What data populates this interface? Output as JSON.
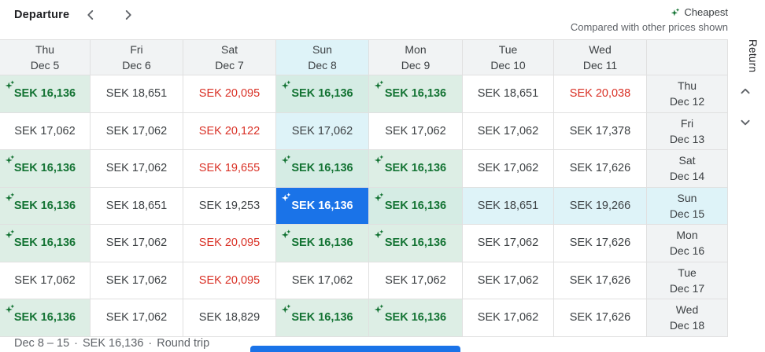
{
  "header": {
    "departure_label": "Departure",
    "legend": {
      "cheapest_label": "Cheapest",
      "note": "Compared with other prices shown"
    }
  },
  "return_axis_label": "Return",
  "icons": {
    "cheapest": "sparkle-icon",
    "prev": "chevron-left-icon",
    "next": "chevron-right-icon",
    "return_up": "chevron-up-icon",
    "return_down": "chevron-down-icon"
  },
  "columns": [
    {
      "day": "Thu",
      "date": "Dec 5",
      "highlighted": false
    },
    {
      "day": "Fri",
      "date": "Dec 6",
      "highlighted": false
    },
    {
      "day": "Sat",
      "date": "Dec 7",
      "highlighted": false
    },
    {
      "day": "Sun",
      "date": "Dec 8",
      "highlighted": true
    },
    {
      "day": "Mon",
      "date": "Dec 9",
      "highlighted": false
    },
    {
      "day": "Tue",
      "date": "Dec 10",
      "highlighted": false
    },
    {
      "day": "Wed",
      "date": "Dec 11",
      "highlighted": false
    }
  ],
  "rows": [
    {
      "day": "Thu",
      "date": "Dec 12",
      "label_highlighted": false,
      "cells": [
        {
          "price": "SEK 16,136",
          "state": "cheapest",
          "highlighted": false
        },
        {
          "price": "SEK 18,651",
          "state": "normal",
          "highlighted": false
        },
        {
          "price": "SEK 20,095",
          "state": "high",
          "highlighted": false
        },
        {
          "price": "SEK 16,136",
          "state": "cheapest",
          "highlighted": true
        },
        {
          "price": "SEK 16,136",
          "state": "cheapest",
          "highlighted": false
        },
        {
          "price": "SEK 18,651",
          "state": "normal",
          "highlighted": false
        },
        {
          "price": "SEK 20,038",
          "state": "high",
          "highlighted": false
        }
      ]
    },
    {
      "day": "Fri",
      "date": "Dec 13",
      "label_highlighted": false,
      "cells": [
        {
          "price": "SEK 17,062",
          "state": "normal",
          "highlighted": false
        },
        {
          "price": "SEK 17,062",
          "state": "normal",
          "highlighted": false
        },
        {
          "price": "SEK 20,122",
          "state": "high",
          "highlighted": false
        },
        {
          "price": "SEK 17,062",
          "state": "normal",
          "highlighted": true
        },
        {
          "price": "SEK 17,062",
          "state": "normal",
          "highlighted": false
        },
        {
          "price": "SEK 17,062",
          "state": "normal",
          "highlighted": false
        },
        {
          "price": "SEK 17,378",
          "state": "normal",
          "highlighted": false
        }
      ]
    },
    {
      "day": "Sat",
      "date": "Dec 14",
      "label_highlighted": false,
      "cells": [
        {
          "price": "SEK 16,136",
          "state": "cheapest",
          "highlighted": false
        },
        {
          "price": "SEK 17,062",
          "state": "normal",
          "highlighted": false
        },
        {
          "price": "SEK 19,655",
          "state": "high",
          "highlighted": false
        },
        {
          "price": "SEK 16,136",
          "state": "cheapest",
          "highlighted": true
        },
        {
          "price": "SEK 16,136",
          "state": "cheapest",
          "highlighted": false
        },
        {
          "price": "SEK 17,062",
          "state": "normal",
          "highlighted": false
        },
        {
          "price": "SEK 17,626",
          "state": "normal",
          "highlighted": false
        }
      ]
    },
    {
      "day": "Sun",
      "date": "Dec 15",
      "label_highlighted": true,
      "cells": [
        {
          "price": "SEK 16,136",
          "state": "cheapest",
          "highlighted": false
        },
        {
          "price": "SEK 18,651",
          "state": "normal",
          "highlighted": false
        },
        {
          "price": "SEK 19,253",
          "state": "normal",
          "highlighted": false
        },
        {
          "price": "SEK 16,136",
          "state": "selected",
          "highlighted": true
        },
        {
          "price": "SEK 16,136",
          "state": "cheapest",
          "highlighted": true
        },
        {
          "price": "SEK 18,651",
          "state": "normal",
          "highlighted": true
        },
        {
          "price": "SEK 19,266",
          "state": "normal",
          "highlighted": true
        }
      ]
    },
    {
      "day": "Mon",
      "date": "Dec 16",
      "label_highlighted": false,
      "cells": [
        {
          "price": "SEK 16,136",
          "state": "cheapest",
          "highlighted": false
        },
        {
          "price": "SEK 17,062",
          "state": "normal",
          "highlighted": false
        },
        {
          "price": "SEK 20,095",
          "state": "high",
          "highlighted": false
        },
        {
          "price": "SEK 16,136",
          "state": "cheapest",
          "highlighted": false
        },
        {
          "price": "SEK 16,136",
          "state": "cheapest",
          "highlighted": false
        },
        {
          "price": "SEK 17,062",
          "state": "normal",
          "highlighted": false
        },
        {
          "price": "SEK 17,626",
          "state": "normal",
          "highlighted": false
        }
      ]
    },
    {
      "day": "Tue",
      "date": "Dec 17",
      "label_highlighted": false,
      "cells": [
        {
          "price": "SEK 17,062",
          "state": "normal",
          "highlighted": false
        },
        {
          "price": "SEK 17,062",
          "state": "normal",
          "highlighted": false
        },
        {
          "price": "SEK 20,095",
          "state": "high",
          "highlighted": false
        },
        {
          "price": "SEK 17,062",
          "state": "normal",
          "highlighted": false
        },
        {
          "price": "SEK 17,062",
          "state": "normal",
          "highlighted": false
        },
        {
          "price": "SEK 17,062",
          "state": "normal",
          "highlighted": false
        },
        {
          "price": "SEK 17,626",
          "state": "normal",
          "highlighted": false
        }
      ]
    },
    {
      "day": "Wed",
      "date": "Dec 18",
      "label_highlighted": false,
      "cells": [
        {
          "price": "SEK 16,136",
          "state": "cheapest",
          "highlighted": false
        },
        {
          "price": "SEK 17,062",
          "state": "normal",
          "highlighted": false
        },
        {
          "price": "SEK 18,829",
          "state": "normal",
          "highlighted": false
        },
        {
          "price": "SEK 16,136",
          "state": "cheapest",
          "highlighted": false
        },
        {
          "price": "SEK 16,136",
          "state": "cheapest",
          "highlighted": false
        },
        {
          "price": "SEK 17,062",
          "state": "normal",
          "highlighted": false
        },
        {
          "price": "SEK 17,626",
          "state": "normal",
          "highlighted": false
        }
      ]
    }
  ],
  "footer": {
    "dates": "Dec 8 – 15",
    "separator": "·",
    "price": "SEK 16,136",
    "trip_type": "Round trip"
  },
  "colors": {
    "selected_bg": "#1a73e8",
    "cheapest_text": "#137333",
    "cheapest_bg": "#ddeee5",
    "cheapest_highlight_bg": "#d5ece4",
    "high_text": "#d93025",
    "highlight_bg": "#def3f8",
    "header_bg": "#f1f3f4",
    "text": "#3c4043",
    "muted_text": "#5f6368",
    "border": "#e0e0e0",
    "footer_bar": "#1a73e8"
  }
}
